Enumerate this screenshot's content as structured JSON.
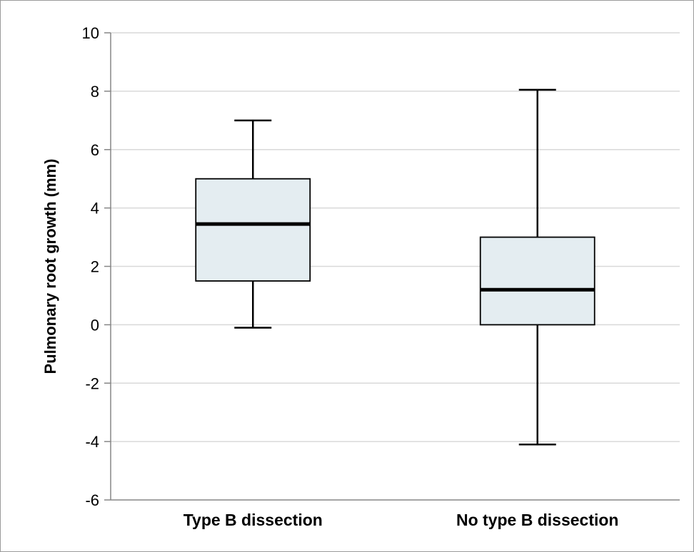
{
  "chart_data": {
    "type": "box",
    "title": "",
    "xlabel": "",
    "ylabel": "Pulmonary root growth (mm)",
    "ylim": [
      -6,
      10
    ],
    "yticks": [
      -6,
      -4,
      -2,
      0,
      2,
      4,
      6,
      8,
      10
    ],
    "ytick_labels": [
      "-6",
      "-4",
      "-2",
      "0",
      "2",
      "4",
      "6",
      "8",
      "10"
    ],
    "grid": true,
    "categories": [
      "Type B dissection",
      "No type B dissection"
    ],
    "boxes": [
      {
        "category": "Type B dissection",
        "min": -0.1,
        "q1": 1.5,
        "median": 3.45,
        "q3": 5.0,
        "max": 7.0
      },
      {
        "category": "No type B dissection",
        "min": -4.1,
        "q1": 0.0,
        "median": 1.2,
        "q3": 3.0,
        "max": 8.05
      }
    ],
    "colors": {
      "box_fill": "#e4edf1",
      "gridline": "#d9d9d9",
      "axis": "#868686"
    }
  }
}
